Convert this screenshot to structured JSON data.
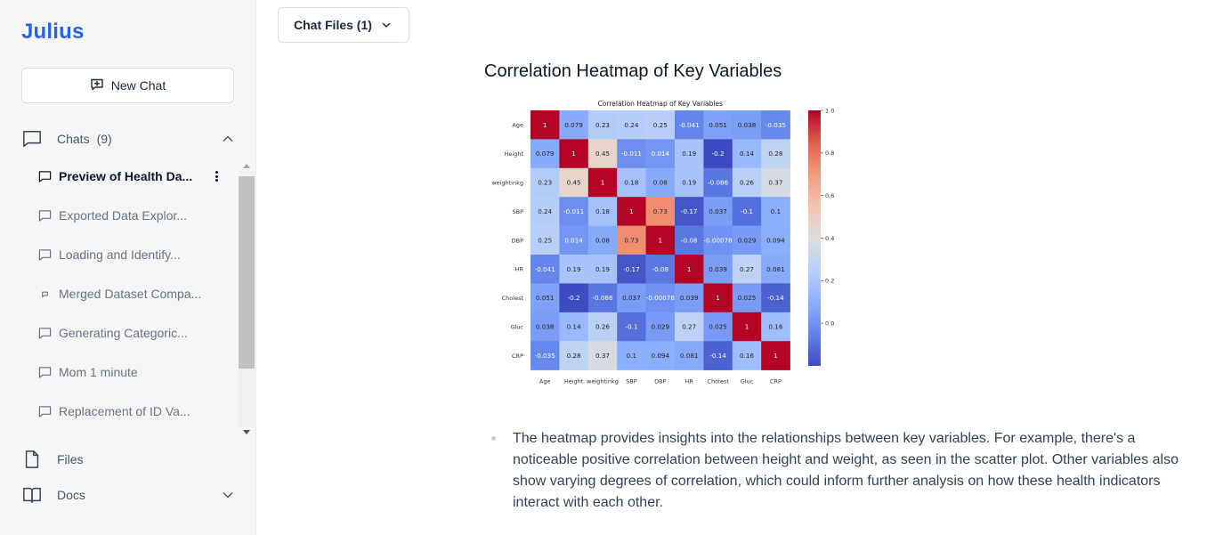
{
  "sidebar": {
    "brand": "Julius",
    "new_chat_label": "New Chat",
    "chats_label": "Chats",
    "chats_count": "(9)",
    "chats": [
      {
        "label": "Preview of Health Da...",
        "active": true,
        "icon": "chat-bubble-icon"
      },
      {
        "label": "Exported Data Explor...",
        "active": false,
        "icon": "chat-bubble-icon"
      },
      {
        "label": "Loading and Identify...",
        "active": false,
        "icon": "chat-bubble-icon"
      },
      {
        "label": "Merged Dataset Compa...",
        "active": false,
        "icon": "small-bubble-icon"
      },
      {
        "label": "Generating Categoric...",
        "active": false,
        "icon": "chat-bubble-icon"
      },
      {
        "label": "Mom 1 minute",
        "active": false,
        "icon": "chat-bubble-icon"
      },
      {
        "label": "Replacement of ID Va...",
        "active": false,
        "icon": "chat-bubble-icon"
      }
    ],
    "files_label": "Files",
    "docs_label": "Docs"
  },
  "main": {
    "chat_files_label": "Chat Files (1)",
    "heading": "Correlation Heatmap of Key Variables",
    "bullet": "The heatmap provides insights into the relationships between key variables. For example, there's a noticeable positive correlation between height and weight, as seen in the scatter plot. Other variables also show varying degrees of correlation, which could inform further analysis on how these health indicators interact with each other."
  },
  "chart_data": {
    "type": "heatmap",
    "title": "Correlation Heatmap of Key Variables",
    "colormap": "coolwarm",
    "vmin": -0.2,
    "vmax": 1.0,
    "colorbar_ticks": [
      "1.0",
      "0.8",
      "0.6",
      "0.4",
      "0.2",
      "0.0"
    ],
    "variables": [
      "Age",
      "Height",
      "weightinkg",
      "SBP",
      "DBP",
      "HR",
      "Cholest",
      "Gluc",
      "CRP"
    ],
    "labels": [
      [
        "1",
        "0.079",
        "0.23",
        "0.24",
        "0.25",
        "-0.041",
        "0.051",
        "0.038",
        "-0.035"
      ],
      [
        "0.079",
        "1",
        "0.45",
        "-0.011",
        "0.014",
        "0.19",
        "-0.2",
        "0.14",
        "0.28"
      ],
      [
        "0.23",
        "0.45",
        "1",
        "0.18",
        "0.08",
        "0.19",
        "-0.086",
        "0.26",
        "0.37"
      ],
      [
        "0.24",
        "-0.011",
        "0.18",
        "1",
        "0.73",
        "-0.17",
        "0.037",
        "-0.1",
        "0.1"
      ],
      [
        "0.25",
        "0.014",
        "0.08",
        "0.73",
        "1",
        "-0.08",
        "-0.00078",
        "0.029",
        "0.094"
      ],
      [
        "-0.041",
        "0.19",
        "0.19",
        "-0.17",
        "-0.08",
        "1",
        "0.039",
        "0.27",
        "0.081"
      ],
      [
        "0.051",
        "-0.2",
        "-0.086",
        "0.037",
        "-0.00078",
        "0.039",
        "1",
        "0.025",
        "-0.14"
      ],
      [
        "0.038",
        "0.14",
        "0.26",
        "-0.1",
        "0.029",
        "0.27",
        "0.025",
        "1",
        "0.16"
      ],
      [
        "-0.035",
        "0.28",
        "0.37",
        "0.1",
        "0.094",
        "0.081",
        "-0.14",
        "0.16",
        "1"
      ]
    ]
  }
}
